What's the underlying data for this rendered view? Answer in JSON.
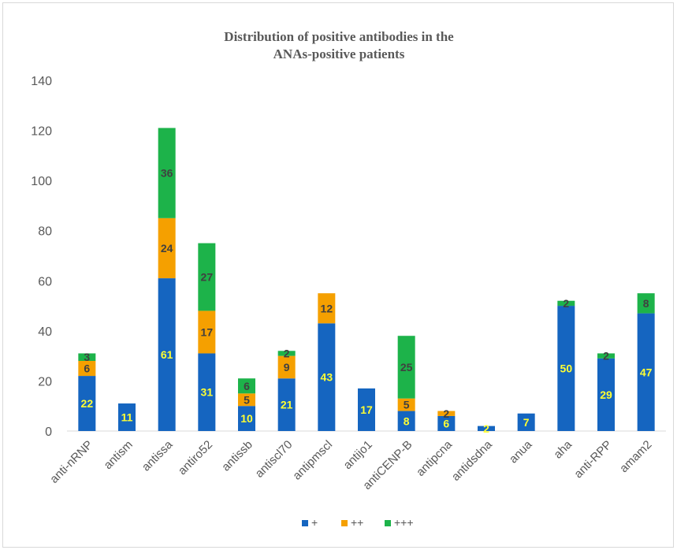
{
  "chart_data": {
    "type": "bar",
    "stacked": true,
    "title_line1": "Distribution of positive antibodies in the",
    "title_line2": "ANAs-positive patients",
    "categories": [
      "anti-nRNP",
      "antism",
      "antissa",
      "antiro52",
      "antissb",
      "antiscl70",
      "antipmscl",
      "antijo1",
      "antiCENP-B",
      "antipcna",
      "antidsdna",
      "anua",
      "aha",
      "anti-RPP",
      "amam2"
    ],
    "series": [
      {
        "name": "+",
        "color": "#1565c0",
        "label_color": "#ffff33",
        "values": [
          22,
          11,
          61,
          31,
          10,
          21,
          43,
          17,
          8,
          6,
          2,
          7,
          50,
          29,
          47
        ]
      },
      {
        "name": "++",
        "color": "#f5a000",
        "label_color": "#404040",
        "values": [
          6,
          0,
          24,
          17,
          5,
          9,
          12,
          0,
          5,
          2,
          0,
          0,
          0,
          0,
          0
        ]
      },
      {
        "name": "+++",
        "color": "#1db34a",
        "label_color": "#404040",
        "values": [
          3,
          0,
          36,
          27,
          6,
          2,
          0,
          0,
          25,
          0,
          0,
          0,
          2,
          2,
          8
        ]
      }
    ],
    "y_ticks": [
      0,
      20,
      40,
      60,
      80,
      100,
      120,
      140
    ],
    "ylim": [
      0,
      140
    ],
    "xlabel": "",
    "ylabel": "",
    "grid": false,
    "legend_position": "bottom"
  }
}
